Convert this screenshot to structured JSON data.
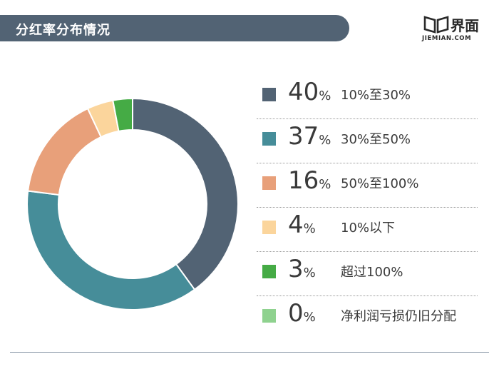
{
  "header": {
    "title": "分红率分布情况"
  },
  "logo": {
    "cn_text": "界面",
    "en_text": "JIEMIAN.COM"
  },
  "chart_data": {
    "type": "pie",
    "title": "分红率分布情况",
    "donut": true,
    "legend_position": "right",
    "series": [
      {
        "label": "10%至30%",
        "value": 40,
        "value_text": "40",
        "color": "#526374"
      },
      {
        "label": "30%至50%",
        "value": 37,
        "value_text": "37",
        "color": "#468d99"
      },
      {
        "label": "50%至100%",
        "value": 16,
        "value_text": "16",
        "color": "#e8a07a"
      },
      {
        "label": "10%以下",
        "value": 4,
        "value_text": "4",
        "color": "#fbd59c"
      },
      {
        "label": "超过100%",
        "value": 3,
        "value_text": "3",
        "color": "#45ab45"
      },
      {
        "label": "净利润亏损仍旧分配",
        "value": 0,
        "value_text": "0",
        "color": "#8fd28f"
      }
    ],
    "percent_sign": "%"
  }
}
